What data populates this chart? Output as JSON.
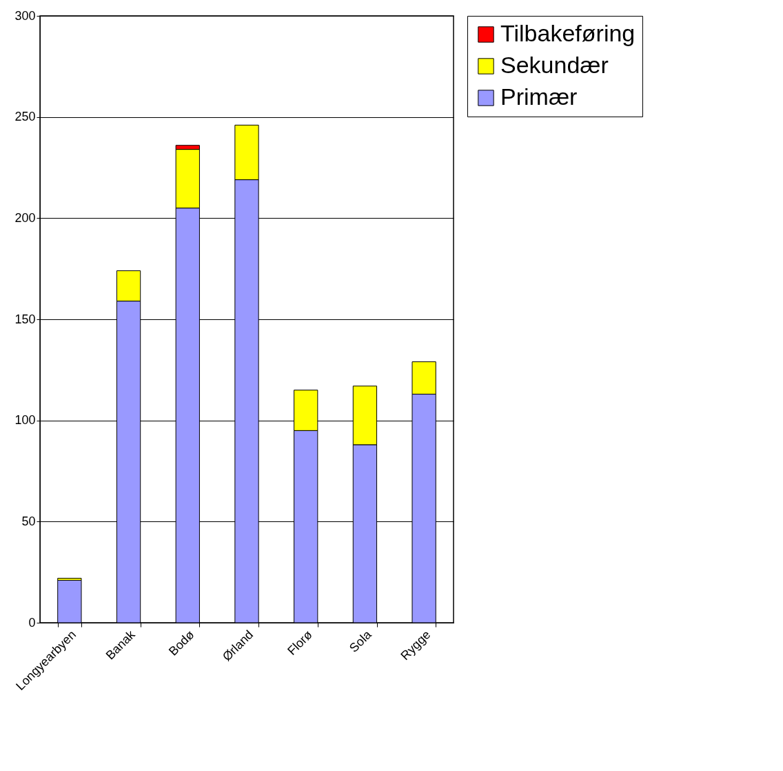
{
  "chart_data": {
    "type": "bar",
    "stacked": true,
    "categories": [
      "Longyearbyen",
      "Banak",
      "Bodø",
      "Ørland",
      "Florø",
      "Sola",
      "Rygge"
    ],
    "series": [
      {
        "name": "Primær",
        "color": "#9999ff",
        "values": [
          21,
          159,
          205,
          219,
          95,
          88,
          113
        ]
      },
      {
        "name": "Sekundær",
        "color": "#ffff00",
        "values": [
          1,
          15,
          29,
          27,
          20,
          29,
          16
        ]
      },
      {
        "name": "Tilbakeføring",
        "color": "#ff0000",
        "values": [
          null,
          null,
          2,
          null,
          null,
          null,
          null
        ]
      }
    ],
    "ylim": [
      0,
      300
    ],
    "yticks": [
      0,
      50,
      100,
      150,
      200,
      250,
      300
    ],
    "grid": "y",
    "legend": "right"
  }
}
